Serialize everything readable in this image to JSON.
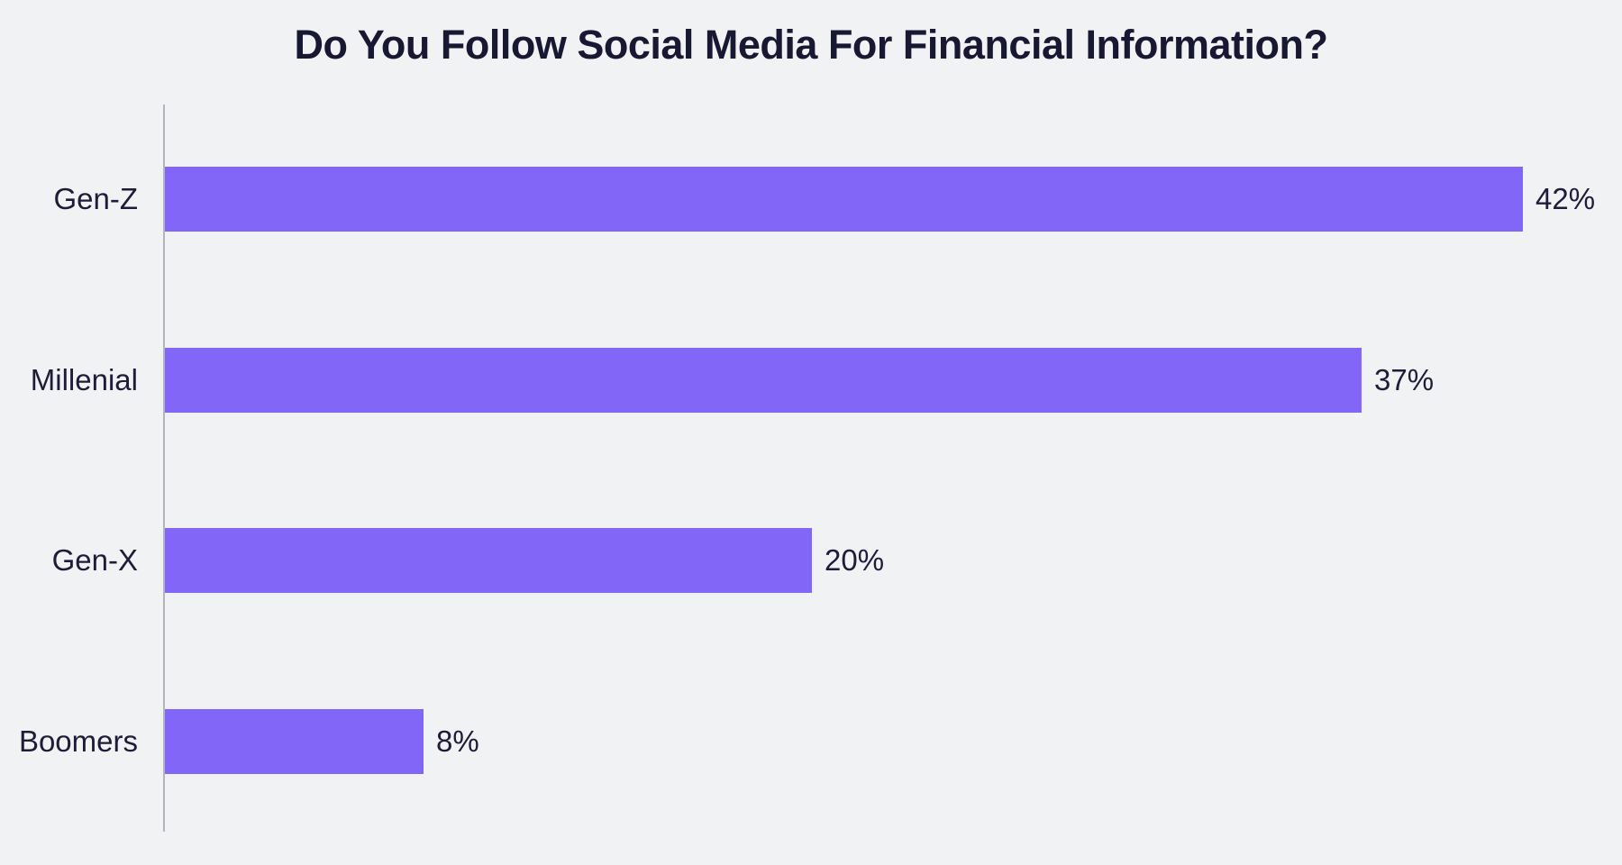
{
  "chart_data": {
    "type": "bar",
    "orientation": "horizontal",
    "title": "Do You Follow Social Media For Financial Information?",
    "categories": [
      "Gen-Z",
      "Millenial",
      "Gen-X",
      "Boomers"
    ],
    "values": [
      42,
      37,
      20,
      8
    ],
    "value_labels": [
      "42%",
      "37%",
      "20%",
      "8%"
    ],
    "xlabel": "",
    "ylabel": "",
    "xlim": [
      0,
      43.5
    ],
    "grid": false,
    "legend": false,
    "colors": {
      "bar": "#8266F8",
      "background": "#F1F2F4",
      "text": "#1E1C38",
      "title": "#191832",
      "axis_line": "#B2B4BF"
    }
  }
}
